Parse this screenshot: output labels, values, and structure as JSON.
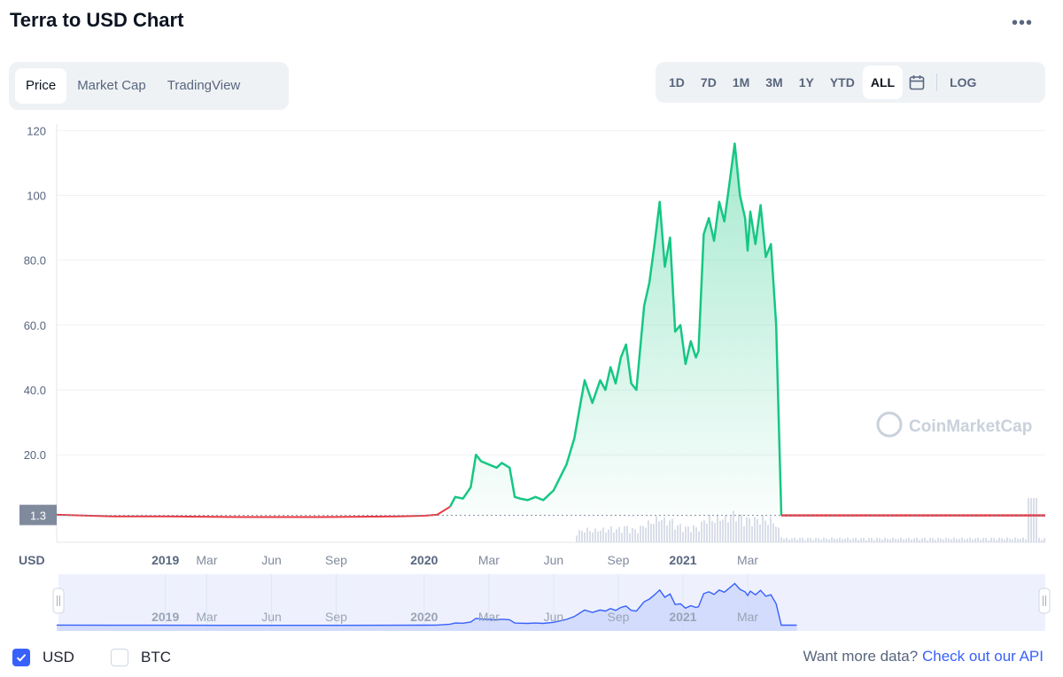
{
  "header": {
    "title": "Terra to USD Chart",
    "more_label": "•••"
  },
  "tabs": [
    {
      "label": "Price",
      "active": true
    },
    {
      "label": "Market Cap",
      "active": false
    },
    {
      "label": "TradingView",
      "active": false
    }
  ],
  "ranges": [
    {
      "label": "1D",
      "active": false
    },
    {
      "label": "7D",
      "active": false
    },
    {
      "label": "1M",
      "active": false
    },
    {
      "label": "3M",
      "active": false
    },
    {
      "label": "1Y",
      "active": false
    },
    {
      "label": "YTD",
      "active": false
    },
    {
      "label": "ALL",
      "active": true
    }
  ],
  "calendar_icon": "calendar-icon",
  "log_label": "LOG",
  "legend": {
    "usd_label": "USD",
    "usd_checked": true,
    "btc_label": "BTC",
    "btc_checked": false
  },
  "footer": {
    "prompt": "Want more data?",
    "link": "Check out our API"
  },
  "watermark": "CoinMarketCap",
  "colors": {
    "up": "#16c784",
    "down": "#ea3943",
    "accent": "#3861fb",
    "grid": "#eff2f5",
    "axis_text": "#58667e",
    "volume": "#cfd6e4"
  },
  "chart_data": {
    "type": "line",
    "title": "Terra to USD Chart",
    "ylabel": "USD",
    "ylim": [
      -7,
      122
    ],
    "yticks": [
      20,
      40,
      60,
      80,
      100,
      120
    ],
    "ytick_labels": [
      "20.0",
      "40.0",
      "60.0",
      "80.0",
      "100",
      "120"
    ],
    "current_price_label": "1.3",
    "current_price": 1.3,
    "xlim": [
      2018.58,
      2022.4
    ],
    "x_ticks": [
      {
        "label": "2019",
        "x": 2019.0,
        "bold": true
      },
      {
        "label": "Mar",
        "x": 2019.16,
        "bold": false
      },
      {
        "label": "Jun",
        "x": 2019.41,
        "bold": false
      },
      {
        "label": "Sep",
        "x": 2019.66,
        "bold": false
      },
      {
        "label": "2020",
        "x": 2020.0,
        "bold": true
      },
      {
        "label": "Mar",
        "x": 2020.25,
        "bold": false
      },
      {
        "label": "Jun",
        "x": 2020.5,
        "bold": false
      },
      {
        "label": "Sep",
        "x": 2020.75,
        "bold": false
      },
      {
        "label": "2021",
        "x": 2021.0,
        "bold": true
      },
      {
        "label": "Mar",
        "x": 2021.25,
        "bold": false
      }
    ],
    "grid": true,
    "series": [
      {
        "name": "USD",
        "x": [
          2018.58,
          2018.8,
          2019.0,
          2019.3,
          2019.6,
          2019.9,
          2020.0,
          2020.05,
          2020.1,
          2020.12,
          2020.15,
          2020.18,
          2020.2,
          2020.22,
          2020.25,
          2020.28,
          2020.3,
          2020.33,
          2020.35,
          2020.37,
          2020.4,
          2020.43,
          2020.46,
          2020.5,
          2020.55,
          2020.58,
          2020.6,
          2020.62,
          2020.65,
          2020.68,
          2020.7,
          2020.72,
          2020.74,
          2020.76,
          2020.78,
          2020.8,
          2020.82,
          2020.85,
          2020.87,
          2020.89,
          2020.91,
          2020.93,
          2020.95,
          2020.97,
          2020.99,
          2021.01,
          2021.03,
          2021.05,
          2021.06,
          2021.08,
          2021.1,
          2021.12,
          2021.14,
          2021.16,
          2021.18,
          2021.2,
          2021.22,
          2021.24,
          2021.25,
          2021.26,
          2021.28,
          2021.3,
          2021.32,
          2021.34,
          2021.36,
          2021.38,
          2021.4,
          2021.42,
          2021.44
        ],
        "values": [
          1.5,
          1.0,
          1.0,
          0.8,
          0.8,
          1.0,
          1.2,
          1.5,
          4.0,
          7.0,
          6.5,
          10.0,
          20.0,
          18.0,
          17.0,
          16.0,
          17.5,
          16.0,
          7.0,
          6.5,
          6.0,
          7.0,
          6.0,
          9.0,
          17.0,
          25.0,
          34.0,
          43.0,
          36.0,
          43.0,
          40.0,
          47.0,
          42.0,
          50.0,
          54.0,
          42.0,
          40.0,
          66.0,
          73.0,
          85.0,
          98.0,
          78.0,
          87.0,
          58.0,
          60.0,
          48.0,
          55.0,
          50.0,
          52.0,
          88.0,
          93.0,
          86.0,
          98.0,
          92.0,
          104.0,
          116.0,
          100.0,
          93.0,
          83.0,
          95.0,
          85.0,
          97.0,
          81.0,
          85.0,
          60.0,
          1.3,
          1.3,
          1.3,
          1.3
        ]
      }
    ],
    "volume_note": "volume bars shown beneath price line"
  }
}
